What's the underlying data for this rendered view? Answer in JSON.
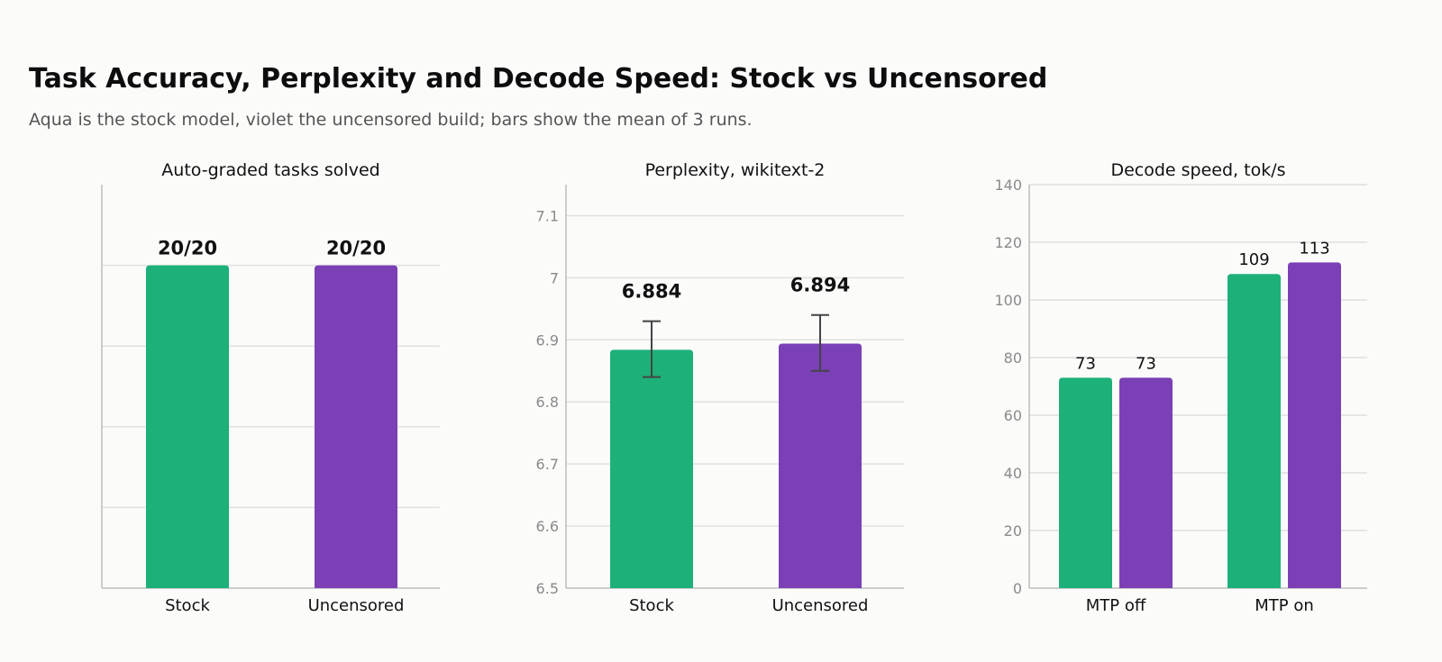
{
  "title": "Task Accuracy, Perplexity and Decode Speed: Stock vs Uncensored",
  "subtitle": "Aqua is the stock model, violet the uncensored build; bars show the mean of 3 runs.",
  "colors": {
    "stock": "#1db078",
    "uncensored": "#7b40b6",
    "axis": "#bdbdbd",
    "grid": "#e0e0e0",
    "error_bar": "#444444"
  },
  "chart_data": [
    {
      "type": "bar",
      "title": "Auto-graded tasks solved",
      "categories": [
        "Stock",
        "Uncensored"
      ],
      "values": [
        20,
        20
      ],
      "value_labels": [
        "20/20",
        "20/20"
      ],
      "ylim": [
        0,
        25
      ],
      "yticks": [
        5,
        10,
        15,
        20
      ],
      "show_tick_labels": false,
      "grid": true
    },
    {
      "type": "bar",
      "title": "Perplexity, wikitext-2",
      "categories": [
        "Stock",
        "Uncensored"
      ],
      "values": [
        6.884,
        6.894
      ],
      "value_labels": [
        "6.884",
        "6.894"
      ],
      "error_low": [
        6.84,
        6.85
      ],
      "error_high": [
        6.93,
        6.94
      ],
      "ylim": [
        6.5,
        7.15
      ],
      "yticks": [
        6.5,
        6.6,
        6.7,
        6.8,
        6.9,
        7.0,
        7.1
      ],
      "ytick_labels": [
        "6.5",
        "6.6",
        "6.7",
        "6.8",
        "6.9",
        "7",
        "7.1"
      ],
      "show_tick_labels": true,
      "grid": true
    },
    {
      "type": "bar",
      "title": "Decode speed, tok/s",
      "categories": [
        "MTP off",
        "MTP on"
      ],
      "series": [
        {
          "values": [
            73,
            109
          ],
          "value_labels": [
            "73",
            "109"
          ]
        },
        {
          "values": [
            73,
            113
          ],
          "value_labels": [
            "73",
            "113"
          ]
        }
      ],
      "ylim": [
        0,
        140
      ],
      "yticks": [
        0,
        20,
        40,
        60,
        80,
        100,
        120,
        140
      ],
      "ytick_labels": [
        "0",
        "20",
        "40",
        "60",
        "80",
        "100",
        "120",
        "140"
      ],
      "show_tick_labels": true,
      "grid": true
    }
  ]
}
